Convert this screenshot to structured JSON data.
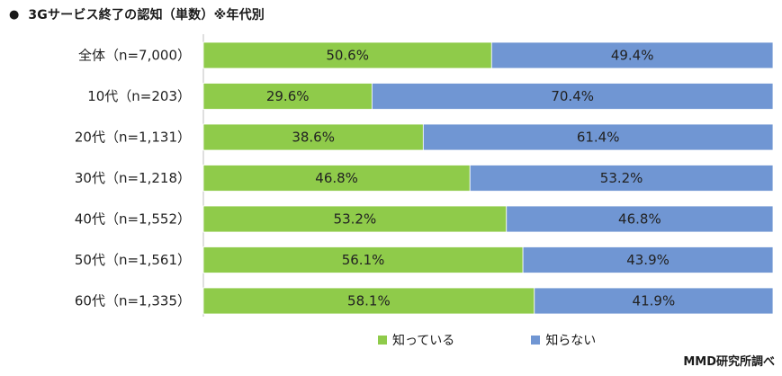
{
  "chart_data": {
    "type": "bar",
    "orientation": "horizontal",
    "stacked": true,
    "percent_stacked": true,
    "title": "3Gサービス終了の認知（単数）※年代別",
    "categories": [
      "全体（n=7,000）",
      "10代（n=203）",
      "20代（n=1,131）",
      "30代（n=1,218）",
      "40代（n=1,552）",
      "50代（n=1,561）",
      "60代（n=1,335）"
    ],
    "series": [
      {
        "name": "知っている",
        "color": "#8fcb4a",
        "values": [
          50.6,
          29.6,
          38.6,
          46.8,
          53.2,
          56.1,
          58.1
        ],
        "labels": [
          "50.6%",
          "29.6%",
          "38.6%",
          "46.8%",
          "53.2%",
          "56.1%",
          "58.1%"
        ]
      },
      {
        "name": "知らない",
        "color": "#7096d3",
        "values": [
          49.4,
          70.4,
          61.4,
          53.2,
          46.8,
          43.9,
          41.9
        ],
        "labels": [
          "49.4%",
          "70.4%",
          "61.4%",
          "53.2%",
          "46.8%",
          "43.9%",
          "41.9%"
        ]
      }
    ],
    "xlim": [
      0,
      100
    ],
    "legend_position": "bottom",
    "grid": false
  },
  "header": {
    "bullet": "●",
    "title": "3Gサービス終了の認知（単数）※年代別"
  },
  "legend": {
    "items": [
      {
        "label": "知っている",
        "color": "#8fcb4a"
      },
      {
        "label": "知らない",
        "color": "#7096d3"
      }
    ]
  },
  "footer": {
    "source": "MMD研究所調べ"
  }
}
